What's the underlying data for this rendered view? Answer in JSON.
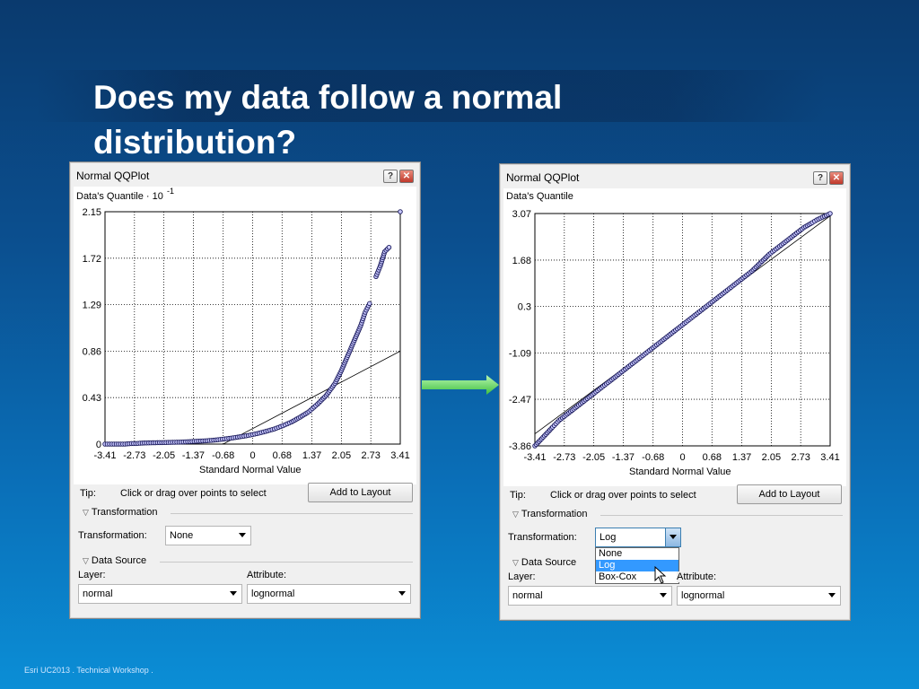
{
  "slide": {
    "title": "Does my data follow a normal distribution?",
    "footer": "Esri UC2013 . Technical Workshop ."
  },
  "windows": [
    {
      "title": "Normal QQPlot",
      "y_axis_title": "Data's Quantile · 10",
      "y_axis_exp": "-1",
      "x_axis_title": "Standard Normal Value",
      "y_ticks": [
        "2.15",
        "1.72",
        "1.29",
        "0.86",
        "0.43",
        "0"
      ],
      "x_ticks": [
        "-3.41",
        "-2.73",
        "-2.05",
        "-1.37",
        "-0.68",
        "0",
        "0.68",
        "1.37",
        "2.05",
        "2.73",
        "3.41"
      ],
      "tip_label": "Tip:",
      "tip_text": "Click or drag over points to select",
      "add_button": "Add to Layout",
      "transformation_section": "Transformation",
      "transformation_label": "Transformation:",
      "transformation_value": "None",
      "datasource_section": "Data Source",
      "layer_label": "Layer:",
      "layer_value": "normal",
      "attribute_label": "Attribute:",
      "attribute_value": "lognormal"
    },
    {
      "title": "Normal QQPlot",
      "y_axis_title": "Data's Quantile",
      "x_axis_title": "Standard Normal Value",
      "y_ticks": [
        "3.07",
        "1.68",
        "0.3",
        "-1.09",
        "-2.47",
        "-3.86"
      ],
      "x_ticks": [
        "-3.41",
        "-2.73",
        "-2.05",
        "-1.37",
        "-0.68",
        "0",
        "0.68",
        "1.37",
        "2.05",
        "2.73",
        "3.41"
      ],
      "tip_label": "Tip:",
      "tip_text": "Click or drag over points to select",
      "add_button": "Add to Layout",
      "transformation_section": "Transformation",
      "transformation_label": "Transformation:",
      "transformation_value": "Log",
      "transformation_options": [
        "None",
        "Log",
        "Box-Cox"
      ],
      "transformation_selected_index": 1,
      "datasource_section": "Data Source",
      "layer_label": "Layer:",
      "layer_value": "normal",
      "attribute_label": "Attribute:",
      "attribute_value": "lognormal"
    }
  ],
  "icons": {
    "help": "help-icon",
    "close": "close-icon",
    "arrow": "right-arrow-icon",
    "cursor": "mouse-cursor-icon"
  },
  "colors": {
    "point_fill": "#c8c8ff",
    "point_stroke": "#1a1a5a",
    "arrow": "#55d155",
    "accent": "#3399ff"
  },
  "chart_data": [
    {
      "type": "scatter",
      "title": "",
      "xlabel": "Standard Normal Value",
      "ylabel": "Data's Quantile · 10^-1",
      "xlim": [
        -3.41,
        3.41
      ],
      "ylim": [
        0,
        2.15
      ],
      "grid": true,
      "reference_line": [
        [
          -0.68,
          0.0
        ],
        [
          3.41,
          0.86
        ]
      ],
      "points": [
        [
          -3.41,
          0.0
        ],
        [
          -3.2,
          0.0
        ],
        [
          -2.95,
          0.0
        ],
        [
          -2.8,
          0.005
        ],
        [
          -2.7,
          0.005
        ],
        [
          -2.6,
          0.008
        ],
        [
          -2.5,
          0.01
        ],
        [
          -2.3,
          0.012
        ],
        [
          -2.1,
          0.014
        ],
        [
          -1.9,
          0.016
        ],
        [
          -1.7,
          0.018
        ],
        [
          -1.5,
          0.022
        ],
        [
          -1.3,
          0.026
        ],
        [
          -1.1,
          0.03
        ],
        [
          -0.9,
          0.036
        ],
        [
          -0.7,
          0.045
        ],
        [
          -0.5,
          0.055
        ],
        [
          -0.3,
          0.067
        ],
        [
          -0.1,
          0.08
        ],
        [
          0.1,
          0.097
        ],
        [
          0.3,
          0.117
        ],
        [
          0.5,
          0.14
        ],
        [
          0.7,
          0.17
        ],
        [
          0.9,
          0.205
        ],
        [
          1.1,
          0.25
        ],
        [
          1.3,
          0.3
        ],
        [
          1.5,
          0.37
        ],
        [
          1.7,
          0.45
        ],
        [
          1.9,
          0.56
        ],
        [
          2.05,
          0.68
        ],
        [
          2.2,
          0.82
        ],
        [
          2.35,
          0.96
        ],
        [
          2.5,
          1.1
        ],
        [
          2.6,
          1.22
        ],
        [
          2.7,
          1.3
        ],
        [
          2.85,
          1.55
        ],
        [
          2.95,
          1.65
        ],
        [
          3.05,
          1.78
        ],
        [
          3.15,
          1.82
        ],
        [
          3.41,
          2.15
        ]
      ]
    },
    {
      "type": "scatter",
      "title": "",
      "xlabel": "Standard Normal Value",
      "ylabel": "Data's Quantile",
      "xlim": [
        -3.41,
        3.41
      ],
      "ylim": [
        -3.86,
        3.07
      ],
      "grid": true,
      "reference_line": [
        [
          -3.41,
          -3.5
        ],
        [
          3.41,
          3.0
        ]
      ],
      "points": [
        [
          -3.41,
          -3.86
        ],
        [
          -3.0,
          -3.3
        ],
        [
          -2.85,
          -3.1
        ],
        [
          -2.7,
          -2.95
        ],
        [
          -2.55,
          -2.8
        ],
        [
          -2.4,
          -2.65
        ],
        [
          -2.2,
          -2.45
        ],
        [
          -2.0,
          -2.25
        ],
        [
          -1.8,
          -2.05
        ],
        [
          -1.6,
          -1.85
        ],
        [
          -1.4,
          -1.65
        ],
        [
          -1.2,
          -1.45
        ],
        [
          -1.0,
          -1.25
        ],
        [
          -0.8,
          -1.05
        ],
        [
          -0.6,
          -0.85
        ],
        [
          -0.4,
          -0.65
        ],
        [
          -0.2,
          -0.45
        ],
        [
          0.0,
          -0.25
        ],
        [
          0.2,
          -0.05
        ],
        [
          0.4,
          0.15
        ],
        [
          0.6,
          0.35
        ],
        [
          0.8,
          0.55
        ],
        [
          1.0,
          0.75
        ],
        [
          1.2,
          0.95
        ],
        [
          1.4,
          1.15
        ],
        [
          1.6,
          1.35
        ],
        [
          1.8,
          1.6
        ],
        [
          2.0,
          1.85
        ],
        [
          2.2,
          2.05
        ],
        [
          2.4,
          2.25
        ],
        [
          2.6,
          2.45
        ],
        [
          2.8,
          2.65
        ],
        [
          3.0,
          2.8
        ],
        [
          3.1,
          2.88
        ],
        [
          3.41,
          3.07
        ]
      ]
    }
  ]
}
